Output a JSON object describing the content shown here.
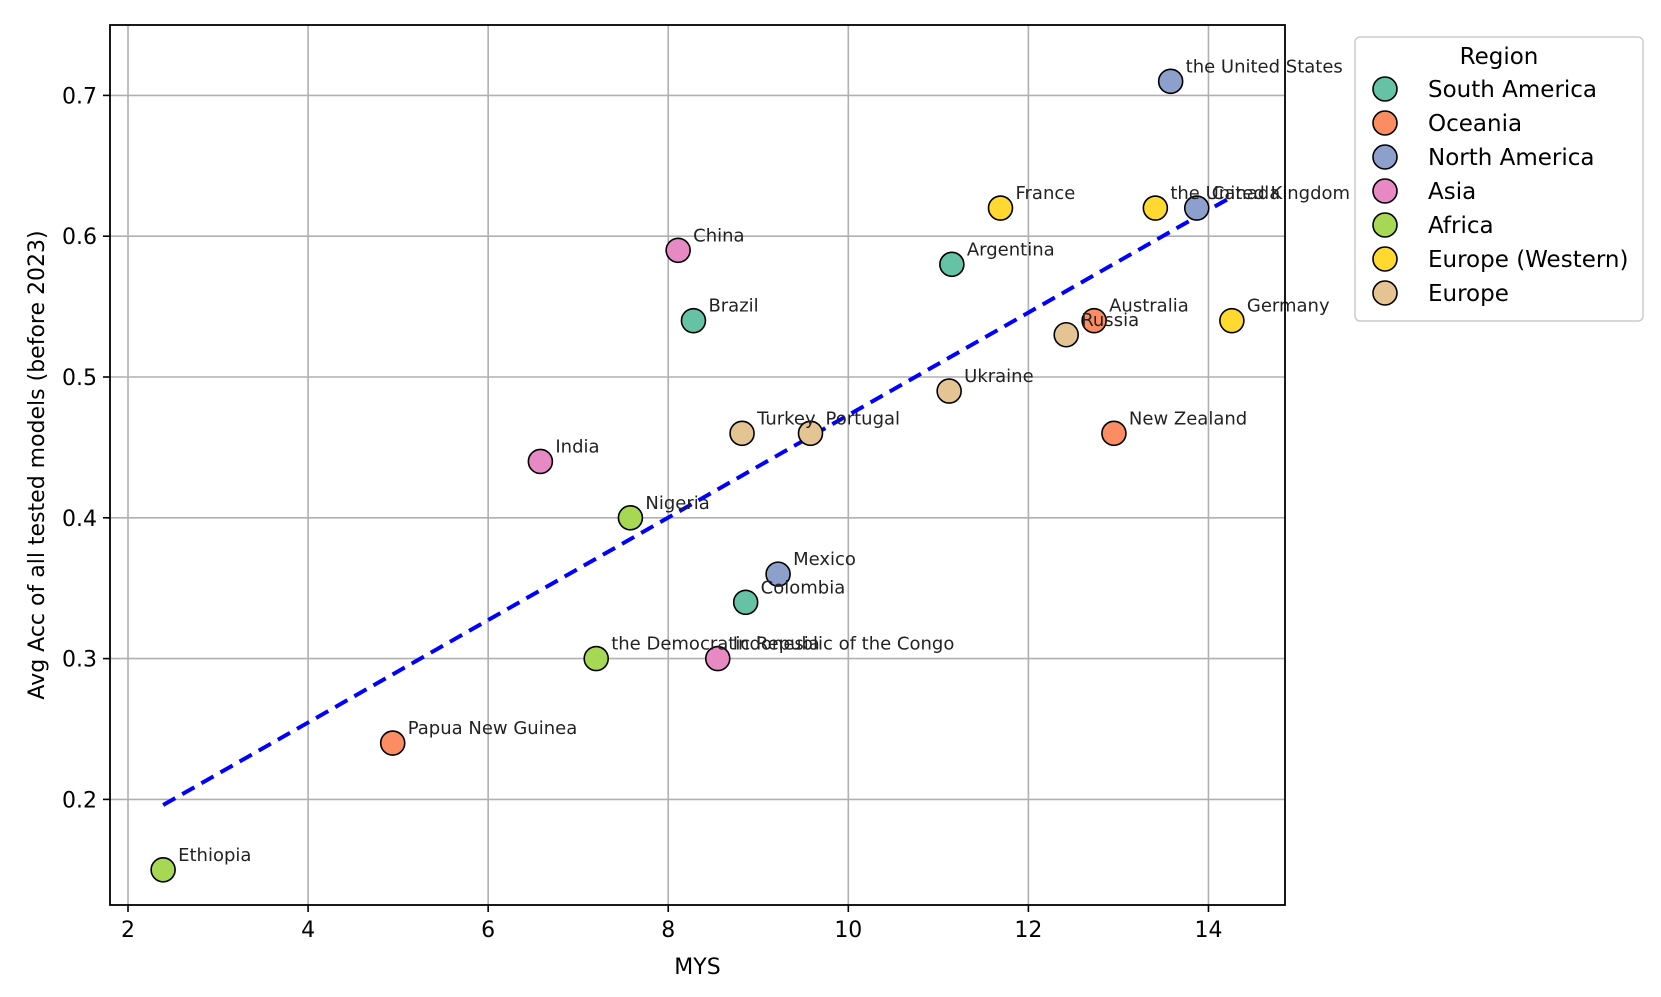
{
  "chart_data": {
    "type": "scatter",
    "title": "",
    "xlabel": "MYS",
    "ylabel": "Avg Acc of all tested models (before 2023)",
    "xlim": [
      1.8,
      14.85
    ],
    "ylim": [
      0.125,
      0.75
    ],
    "xticks": [
      2,
      4,
      6,
      8,
      10,
      12,
      14
    ],
    "yticks": [
      0.2,
      0.3,
      0.4,
      0.5,
      0.6,
      0.7
    ],
    "xtick_labels": [
      "2",
      "4",
      "6",
      "8",
      "10",
      "12",
      "14"
    ],
    "ytick_labels": [
      "0.2",
      "0.3",
      "0.4",
      "0.5",
      "0.6",
      "0.7"
    ],
    "grid": true,
    "legend": {
      "title": "Region",
      "placement": "outside-top-right",
      "entries": [
        {
          "name": "South America",
          "color": "#66c2a5"
        },
        {
          "name": "Oceania",
          "color": "#fc8d62"
        },
        {
          "name": "North America",
          "color": "#8da0cb"
        },
        {
          "name": "Asia",
          "color": "#e78ac3"
        },
        {
          "name": "Africa",
          "color": "#a6d854"
        },
        {
          "name": "Europe (Western)",
          "color": "#ffd92f"
        },
        {
          "name": "Europe",
          "color": "#e5c494"
        }
      ]
    },
    "points": [
      {
        "label": "the United States",
        "x": 13.58,
        "y": 0.71,
        "region": "North America"
      },
      {
        "label": "Canada",
        "x": 13.87,
        "y": 0.62,
        "region": "North America"
      },
      {
        "label": "France",
        "x": 11.69,
        "y": 0.62,
        "region": "Europe (Western)"
      },
      {
        "label": "the United Kingdom",
        "x": 13.41,
        "y": 0.62,
        "region": "Europe (Western)"
      },
      {
        "label": "China",
        "x": 8.11,
        "y": 0.59,
        "region": "Asia"
      },
      {
        "label": "Argentina",
        "x": 11.15,
        "y": 0.58,
        "region": "South America"
      },
      {
        "label": "Brazil",
        "x": 8.28,
        "y": 0.54,
        "region": "South America"
      },
      {
        "label": "Australia",
        "x": 12.73,
        "y": 0.54,
        "region": "Oceania"
      },
      {
        "label": "Germany",
        "x": 14.26,
        "y": 0.54,
        "region": "Europe (Western)"
      },
      {
        "label": "Russia",
        "x": 12.42,
        "y": 0.53,
        "region": "Europe"
      },
      {
        "label": "Ukraine",
        "x": 11.12,
        "y": 0.49,
        "region": "Europe"
      },
      {
        "label": "Turkey",
        "x": 8.82,
        "y": 0.46,
        "region": "Europe"
      },
      {
        "label": "Portugal",
        "x": 9.58,
        "y": 0.46,
        "region": "Europe"
      },
      {
        "label": "New Zealand",
        "x": 12.95,
        "y": 0.46,
        "region": "Oceania"
      },
      {
        "label": "India",
        "x": 6.58,
        "y": 0.44,
        "region": "Asia"
      },
      {
        "label": "Nigeria",
        "x": 7.58,
        "y": 0.4,
        "region": "Africa"
      },
      {
        "label": "Mexico",
        "x": 9.22,
        "y": 0.36,
        "region": "North America"
      },
      {
        "label": "Colombia",
        "x": 8.86,
        "y": 0.34,
        "region": "South America"
      },
      {
        "label": "the Democratic Republic of the Congo",
        "x": 7.2,
        "y": 0.3,
        "region": "Africa"
      },
      {
        "label": "Indonesia",
        "x": 8.55,
        "y": 0.3,
        "region": "Asia"
      },
      {
        "label": "Papua New Guinea",
        "x": 4.94,
        "y": 0.24,
        "region": "Oceania"
      },
      {
        "label": "Ethiopia",
        "x": 2.39,
        "y": 0.15,
        "region": "Africa"
      }
    ],
    "trendline": {
      "style": "dashed",
      "color": "#0000ff",
      "x": [
        2.39,
        14.26
      ],
      "y": [
        0.196,
        0.628
      ]
    }
  }
}
